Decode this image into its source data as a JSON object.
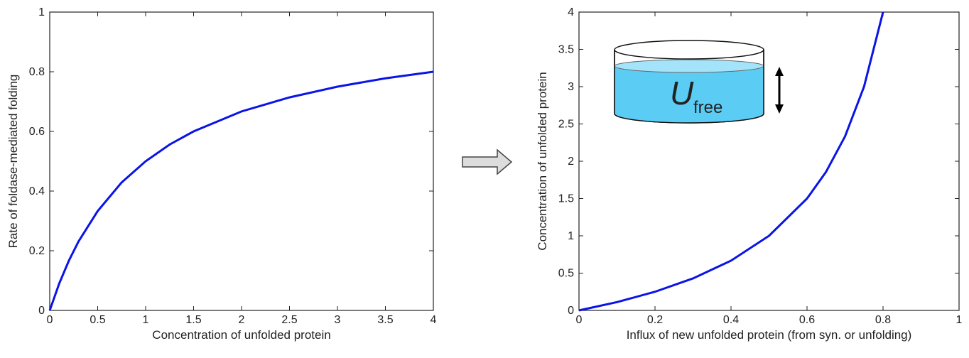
{
  "chart_data": [
    {
      "type": "line",
      "xlabel": "Concentration of unfolded protein",
      "ylabel": "Rate of foldase-mediated folding",
      "x": [
        0,
        0.1,
        0.2,
        0.3,
        0.5,
        0.75,
        1,
        1.25,
        1.5,
        2,
        2.5,
        3,
        3.5,
        4
      ],
      "values": [
        0,
        0.091,
        0.167,
        0.231,
        0.333,
        0.429,
        0.5,
        0.556,
        0.6,
        0.667,
        0.714,
        0.75,
        0.778,
        0.8
      ],
      "color": "#0a14e6",
      "xlim": [
        0,
        4
      ],
      "xticks": [
        0,
        0.5,
        1,
        1.5,
        2,
        2.5,
        3,
        3.5,
        4
      ],
      "ylim": [
        0,
        1
      ],
      "yticks": [
        0,
        0.2,
        0.4,
        0.6,
        0.8,
        1
      ]
    },
    {
      "type": "line",
      "xlabel": "Influx of new unfolded protein (from syn. or unfolding)",
      "ylabel": "Concentration of unfolded protein",
      "x": [
        0,
        0.1,
        0.2,
        0.3,
        0.4,
        0.5,
        0.6,
        0.65,
        0.7,
        0.75,
        0.8
      ],
      "values": [
        0,
        0.111,
        0.25,
        0.429,
        0.667,
        1,
        1.5,
        1.857,
        2.333,
        3,
        4
      ],
      "color": "#0a14e6",
      "xlim": [
        0,
        1
      ],
      "xticks": [
        0,
        0.2,
        0.4,
        0.6,
        0.8,
        1
      ],
      "ylim": [
        0,
        4
      ],
      "yticks": [
        0,
        0.5,
        1,
        1.5,
        2,
        2.5,
        3,
        3.5,
        4
      ],
      "annotation": "U",
      "annotation_subscript": "free"
    }
  ]
}
